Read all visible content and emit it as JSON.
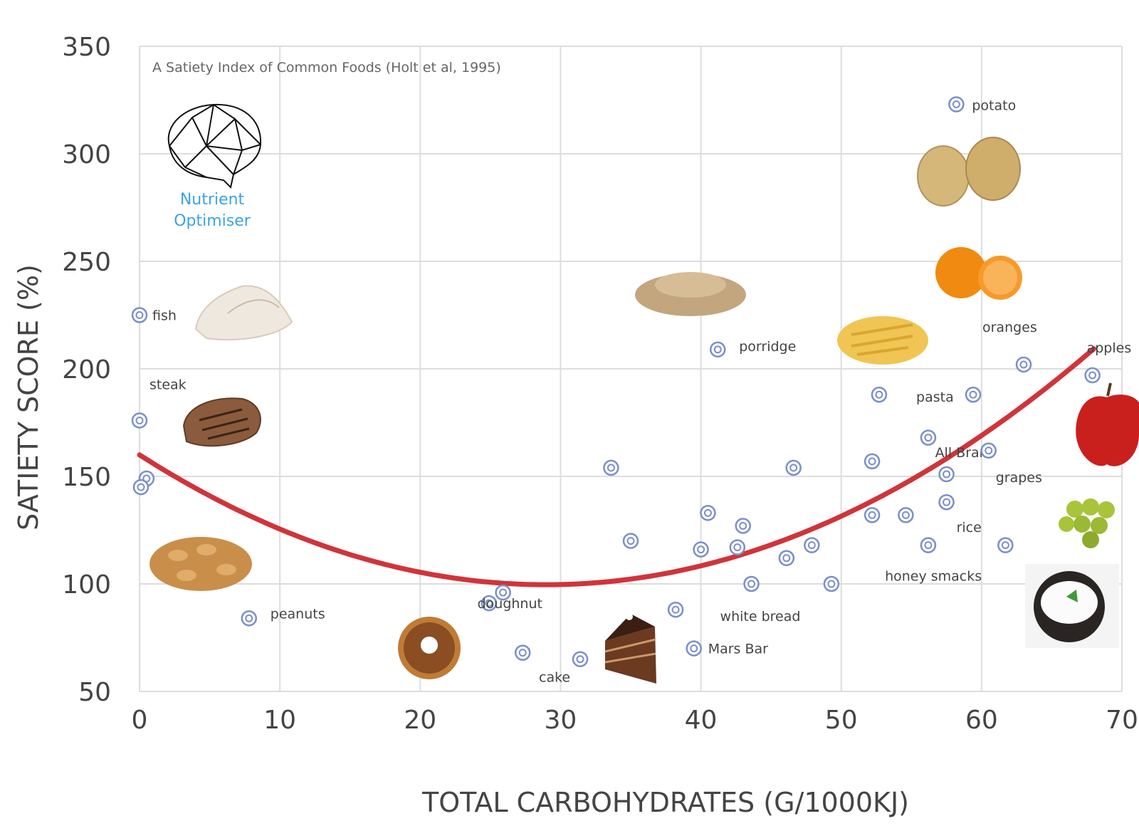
{
  "chart_data": {
    "type": "scatter",
    "subtitle": "A Satiety Index of Common Foods (Holt et al, 1995)",
    "xlabel": "TOTAL CARBOHYDRATES (G/1000KJ)",
    "ylabel": "SATIETY SCORE (%)",
    "xlim": [
      0,
      70
    ],
    "ylim": [
      50,
      350
    ],
    "xticks": [
      "0",
      "10",
      "20",
      "30",
      "40",
      "50",
      "60",
      "70"
    ],
    "yticks": [
      "50",
      "100",
      "150",
      "200",
      "250",
      "300",
      "350"
    ],
    "grid": true,
    "points": [
      {
        "x": 0,
        "y": 225,
        "label": "fish"
      },
      {
        "x": 0,
        "y": 176,
        "label": "steak"
      },
      {
        "x": 0.5,
        "y": 149,
        "label": ""
      },
      {
        "x": 0.1,
        "y": 145,
        "label": ""
      },
      {
        "x": 7.8,
        "y": 84,
        "label": "peanuts"
      },
      {
        "x": 24.9,
        "y": 91,
        "label": ""
      },
      {
        "x": 25.9,
        "y": 96,
        "label": "doughnut"
      },
      {
        "x": 27.3,
        "y": 68,
        "label": ""
      },
      {
        "x": 31.4,
        "y": 65,
        "label": "cake"
      },
      {
        "x": 33.6,
        "y": 154,
        "label": ""
      },
      {
        "x": 35,
        "y": 120,
        "label": ""
      },
      {
        "x": 38.2,
        "y": 88,
        "label": ""
      },
      {
        "x": 39.5,
        "y": 70,
        "label": "Mars Bar"
      },
      {
        "x": 40,
        "y": 116,
        "label": ""
      },
      {
        "x": 40.5,
        "y": 133,
        "label": ""
      },
      {
        "x": 41.2,
        "y": 209,
        "label": "porridge"
      },
      {
        "x": 42.6,
        "y": 117,
        "label": ""
      },
      {
        "x": 43,
        "y": 127,
        "label": ""
      },
      {
        "x": 43.6,
        "y": 100,
        "label": "white bread"
      },
      {
        "x": 46.1,
        "y": 112,
        "label": ""
      },
      {
        "x": 46.6,
        "y": 154,
        "label": ""
      },
      {
        "x": 47.9,
        "y": 118,
        "label": ""
      },
      {
        "x": 49.3,
        "y": 100,
        "label": ""
      },
      {
        "x": 52.2,
        "y": 132,
        "label": "honey smacks"
      },
      {
        "x": 52.2,
        "y": 157,
        "label": ""
      },
      {
        "x": 52.7,
        "y": 188,
        "label": ""
      },
      {
        "x": 54.6,
        "y": 132,
        "label": ""
      },
      {
        "x": 56.2,
        "y": 168,
        "label": ""
      },
      {
        "x": 56.2,
        "y": 118,
        "label": ""
      },
      {
        "x": 57.5,
        "y": 151,
        "label": "All Bran"
      },
      {
        "x": 57.5,
        "y": 138,
        "label": "rice"
      },
      {
        "x": 58.2,
        "y": 323,
        "label": "potato"
      },
      {
        "x": 59.4,
        "y": 188,
        "label": "pasta"
      },
      {
        "x": 60.5,
        "y": 162,
        "label": "grapes"
      },
      {
        "x": 61.7,
        "y": 118,
        "label": ""
      },
      {
        "x": 63,
        "y": 202,
        "label": "oranges"
      },
      {
        "x": 67.9,
        "y": 197,
        "label": "apples"
      }
    ],
    "trendline": {
      "type": "quadratic",
      "color": "#d0343a",
      "x_range": [
        0,
        68
      ],
      "a": 0.072,
      "b": -4.17,
      "c": 160
    }
  },
  "brand": {
    "line1": "Nutrient",
    "line2": "Optimiser"
  },
  "colors": {
    "point": "#7a8fc9",
    "grid": "#dddddd",
    "trend": "#d0343a",
    "brand": "#3aa3e6"
  }
}
